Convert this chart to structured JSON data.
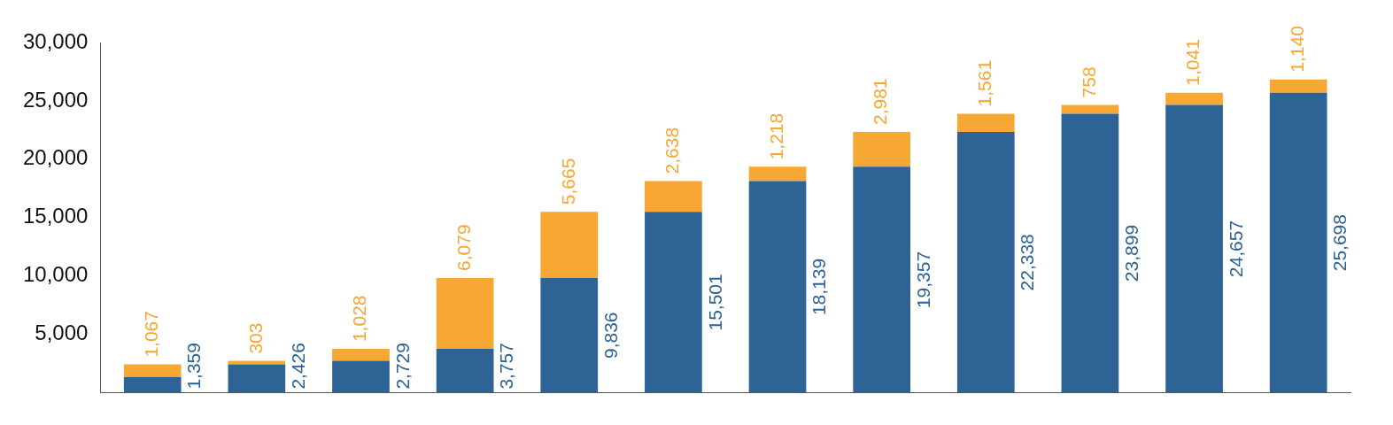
{
  "chart_data": {
    "type": "bar",
    "stacked": true,
    "categories": [
      null,
      null,
      null,
      null,
      null,
      null,
      null,
      null,
      null,
      null,
      null,
      null
    ],
    "series": [
      {
        "color": "#2e6395",
        "values": [
          1359,
          2426,
          2729,
          3757,
          9836,
          15501,
          18139,
          19357,
          22338,
          23899,
          24657,
          25698
        ],
        "value_labels": [
          "1,359",
          "2,426",
          "2,729",
          "3,757",
          "9,836",
          "15,501",
          "18,139",
          "19,357",
          "22,338",
          "23,899",
          "24,657",
          "25,698"
        ]
      },
      {
        "color": "#f7a733",
        "values": [
          1067,
          303,
          1028,
          6079,
          5665,
          2638,
          1218,
          2981,
          1561,
          758,
          1041,
          1140
        ],
        "value_labels": [
          "1,067",
          "303",
          "1,028",
          "6,079",
          "5,665",
          "2,638",
          "1,218",
          "2,981",
          "1,561",
          "758",
          "1,041",
          "1,140"
        ]
      }
    ],
    "ylim": [
      0,
      30000
    ],
    "yticks": [
      {
        "value": 5000,
        "label": "5,000"
      },
      {
        "value": 10000,
        "label": "10,000"
      },
      {
        "value": 15000,
        "label": "15,000"
      },
      {
        "value": 20000,
        "label": "20,000"
      },
      {
        "value": 25000,
        "label": "25,000"
      },
      {
        "value": 30000,
        "label": "30,000"
      }
    ],
    "tick_labels": "y",
    "grid": false,
    "legend": false
  }
}
